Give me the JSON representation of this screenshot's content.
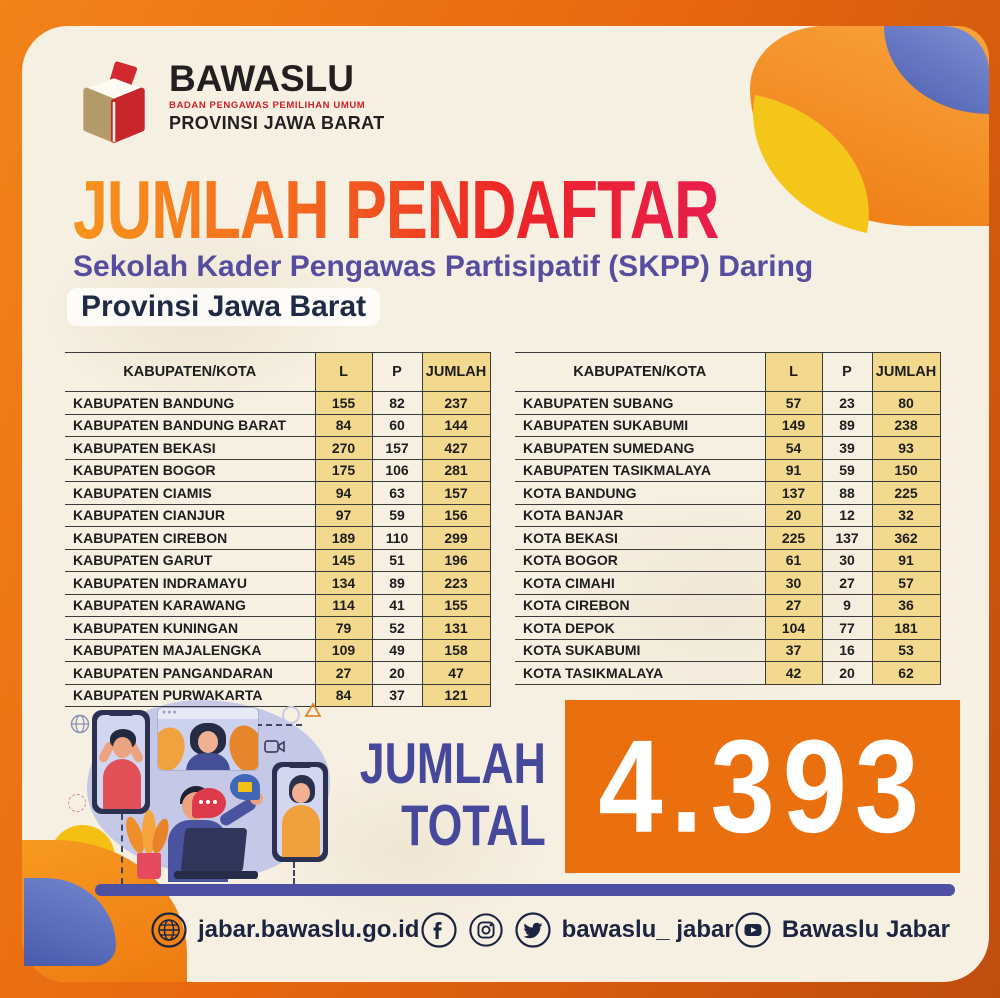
{
  "logo": {
    "name": "BAWASLU",
    "subtitle": "BADAN PENGAWAS PEMILIHAN UMUM",
    "region": "PROVINSI JAWA BARAT"
  },
  "header": {
    "title": "JUMLAH PENDAFTAR",
    "subtitle": "Sekolah Kader Pengawas Partisipatif (SKPP) Daring",
    "region": "Provinsi Jawa Barat"
  },
  "chart_data": {
    "type": "table",
    "title": "JUMLAH PENDAFTAR",
    "subtitle": "Sekolah Kader Pengawas Partisipatif (SKPP) Daring — Provinsi Jawa Barat",
    "columns": [
      "KABUPATEN/KOTA",
      "L",
      "P",
      "JUMLAH"
    ],
    "left_rows": [
      [
        "KABUPATEN BANDUNG",
        "155",
        "82",
        "237"
      ],
      [
        "KABUPATEN BANDUNG BARAT",
        "84",
        "60",
        "144"
      ],
      [
        "KABUPATEN BEKASI",
        "270",
        "157",
        "427"
      ],
      [
        "KABUPATEN BOGOR",
        "175",
        "106",
        "281"
      ],
      [
        "KABUPATEN CIAMIS",
        "94",
        "63",
        "157"
      ],
      [
        "KABUPATEN CIANJUR",
        "97",
        "59",
        "156"
      ],
      [
        "KABUPATEN CIREBON",
        "189",
        "110",
        "299"
      ],
      [
        "KABUPATEN GARUT",
        "145",
        "51",
        "196"
      ],
      [
        "KABUPATEN INDRAMAYU",
        "134",
        "89",
        "223"
      ],
      [
        "KABUPATEN KARAWANG",
        "114",
        "41",
        "155"
      ],
      [
        "KABUPATEN KUNINGAN",
        "79",
        "52",
        "131"
      ],
      [
        "KABUPATEN MAJALENGKA",
        "109",
        "49",
        "158"
      ],
      [
        "KABUPATEN PANGANDARAN",
        "27",
        "20",
        "47"
      ],
      [
        "KABUPATEN PURWAKARTA",
        "84",
        "37",
        "121"
      ]
    ],
    "right_rows": [
      [
        "KABUPATEN SUBANG",
        "57",
        "23",
        "80"
      ],
      [
        "KABUPATEN SUKABUMI",
        "149",
        "89",
        "238"
      ],
      [
        "KABUPATEN SUMEDANG",
        "54",
        "39",
        "93"
      ],
      [
        "KABUPATEN TASIKMALAYA",
        "91",
        "59",
        "150"
      ],
      [
        "KOTA BANDUNG",
        "137",
        "88",
        "225"
      ],
      [
        "KOTA BANJAR",
        "20",
        "12",
        "32"
      ],
      [
        "KOTA BEKASI",
        "225",
        "137",
        "362"
      ],
      [
        "KOTA BOGOR",
        "61",
        "30",
        "91"
      ],
      [
        "KOTA CIMAHI",
        "30",
        "27",
        "57"
      ],
      [
        "KOTA CIREBON",
        "27",
        "9",
        "36"
      ],
      [
        "KOTA DEPOK",
        "104",
        "77",
        "181"
      ],
      [
        "KOTA SUKABUMI",
        "37",
        "16",
        "53"
      ],
      [
        "KOTA TASIKMALAYA",
        "42",
        "20",
        "62"
      ]
    ],
    "total_label": "JUMLAH TOTAL",
    "total_display": "4.393",
    "legend_position": "none",
    "grid": true
  },
  "total": {
    "label_lines": "JUMLAH\nTOTAL",
    "value": "4.393"
  },
  "footer": {
    "website": "jabar.bawaslu.go.id",
    "twitter_handle": "bawaslu_ jabar",
    "youtube_label": "Bawaslu Jabar",
    "icons": [
      "globe-icon",
      "facebook-icon",
      "instagram-icon",
      "twitter-icon",
      "youtube-icon"
    ]
  },
  "colors": {
    "frame_orange": "#e8680f",
    "card_cream": "#f6f0e2",
    "tan_cell": "#f3d98e",
    "title_gradient_start": "#f7941d",
    "title_gradient_end": "#e81d4e",
    "subtitle_purple": "#564da0",
    "navy_text": "#1b2440",
    "total_purple": "#45489b",
    "total_box_orange": "#ea700f",
    "line_purple": "#4e51a3",
    "logo_red": "#cf2127"
  }
}
